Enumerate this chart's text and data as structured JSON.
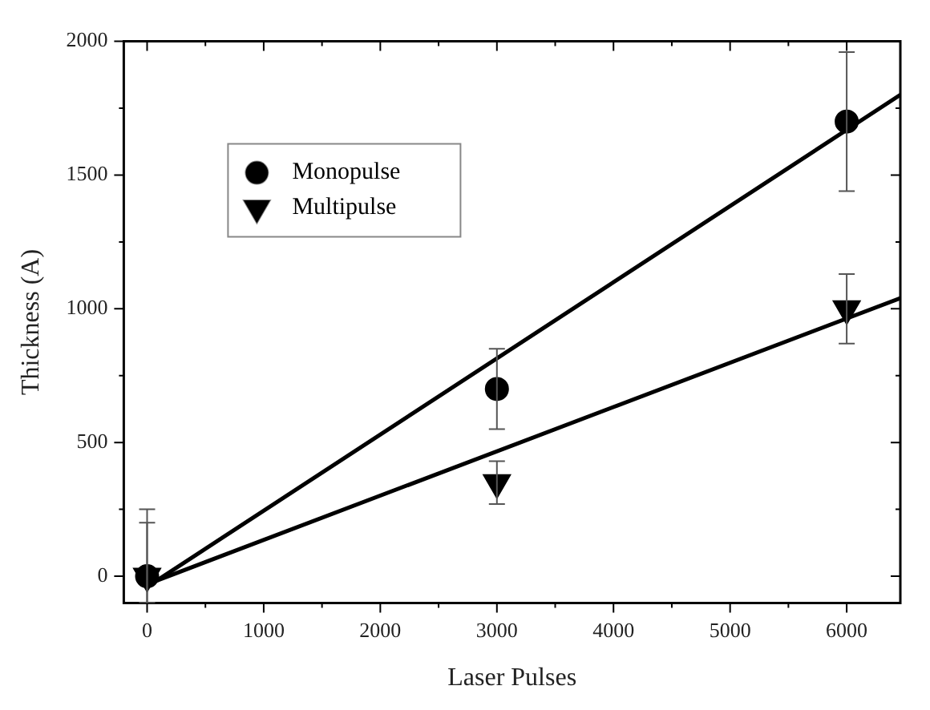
{
  "chart_data": {
    "type": "scatter",
    "xlabel": "Laser Pulses",
    "ylabel": "Thickness (A)",
    "xlim": [
      -200,
      6460
    ],
    "ylim": [
      -100,
      2000
    ],
    "xticks": [
      0,
      {
        "value": 500,
        "label": null
      },
      1000,
      {
        "value": 1500,
        "label": null
      },
      2000,
      {
        "value": 2500,
        "label": null
      },
      3000,
      {
        "value": 3500,
        "label": null
      },
      4000,
      {
        "value": 4500,
        "label": null
      },
      5000,
      {
        "value": 5500,
        "label": null
      },
      6000
    ],
    "yticks": [
      0,
      {
        "value": 250,
        "label": null
      },
      500,
      {
        "value": 750,
        "label": null
      },
      1000,
      {
        "value": 1250,
        "label": null
      },
      1500,
      {
        "value": 1750,
        "label": null
      },
      2000
    ],
    "legend": "top left",
    "series": [
      {
        "name": "Monopulse",
        "marker": "circle",
        "color": "#000000",
        "x": [
          0,
          3000,
          6000
        ],
        "values": [
          0,
          700,
          1700
        ],
        "errors": [
          [
            -100,
            250
          ],
          150,
          260
        ]
      },
      {
        "name": "Multipulse",
        "marker": "triangle",
        "color": "#000000",
        "x": [
          0,
          3000,
          6000
        ],
        "values": [
          0,
          350,
          1000
        ],
        "errors": [
          [
            -100,
            200
          ],
          80,
          130
        ]
      },
      {
        "type": "line",
        "marker": "none",
        "color": "#000000",
        "x": [
          0,
          6460
        ],
        "values": [
          -40,
          1800
        ]
      },
      {
        "type": "line",
        "marker": "none",
        "color": "#000000",
        "x": [
          0,
          6460
        ],
        "values": [
          -30,
          1040
        ]
      }
    ]
  }
}
